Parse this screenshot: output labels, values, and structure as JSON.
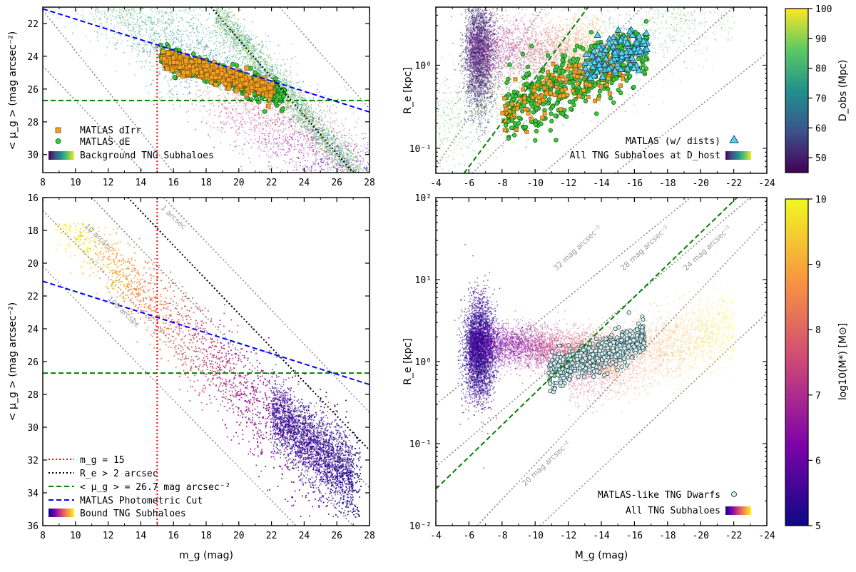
{
  "chart_data": [
    {
      "id": "top_left",
      "type": "scatter",
      "xlim": [
        8,
        28
      ],
      "ylim": [
        31.1,
        21.0
      ],
      "xticks": [
        "8",
        "10",
        "12",
        "14",
        "16",
        "18",
        "20",
        "22",
        "24",
        "26",
        "28"
      ],
      "yticks": [
        "22",
        "24",
        "26",
        "28",
        "30"
      ],
      "xlabel": "",
      "ylabel": "< μ_g > (mag arcsec⁻²)",
      "legend": [
        "MATLAS dIrr",
        "MATLAS dE",
        "Background TNG Subhaloes"
      ],
      "series": [
        {
          "name": "MATLAS dIrr",
          "marker": "square",
          "color": "#f2a127",
          "x_range": [
            15.3,
            22.5
          ],
          "y_center": "24.1 + 0.3·(x-15.3)"
        },
        {
          "name": "MATLAS dE",
          "marker": "circle",
          "color": "#3cc93c",
          "x_range": [
            15.2,
            22.8
          ],
          "y_center": "24.0 + 0.32·(x-15.2)"
        },
        {
          "name": "Background TNG Subhaloes",
          "marker": "dot",
          "colormap": "viridis"
        }
      ],
      "lines": [
        {
          "name": "m_g = 15",
          "style": "dotted",
          "color": "#ff0000",
          "x": 15,
          "y_from": 23.4
        },
        {
          "name": "R_e > 2 arcsec",
          "style": "dotted",
          "color": "#000000",
          "x0": 18.3,
          "y0": 21.0,
          "x1": 27.0,
          "y1": 31.1
        },
        {
          "name": "<μ_g> = 26.7",
          "style": "dashed",
          "color": "#008000",
          "y": 26.7
        },
        {
          "name": "MATLAS Photometric Cut",
          "style": "dashed",
          "color": "#0000ff",
          "x0": 8,
          "y0": 21.1,
          "x1": 28,
          "y1": 27.4
        }
      ],
      "diag_lines": [
        [
          8,
          24.6,
          14.2,
          31.1
        ],
        [
          8,
          21.2,
          16.0,
          31.1
        ],
        [
          22.5,
          21.0,
          28,
          27.2
        ]
      ]
    },
    {
      "id": "top_right",
      "type": "scatter",
      "xlim": [
        -4,
        -24
      ],
      "ylim": [
        0.05,
        5
      ],
      "yscale": "log",
      "xticks": [
        "-4",
        "-6",
        "-8",
        "-10",
        "-12",
        "-14",
        "-16",
        "-18",
        "-20",
        "-22",
        "-24"
      ],
      "yticks": [
        "10⁻¹",
        "10⁰"
      ],
      "xlabel": "",
      "ylabel": "R_e [kpc]",
      "legend": [
        "MATLAS (w/ dists)",
        "All TNG Subhaloes at D_host"
      ],
      "series": [
        {
          "name": "MATLAS dE",
          "marker": "circle",
          "color": "#3cc93c",
          "x_range": [
            -8.2,
            -16.8
          ]
        },
        {
          "name": "MATLAS dIrr",
          "marker": "square",
          "color": "#f2a127",
          "x_range": [
            -8.0,
            -15.8
          ]
        },
        {
          "name": "MATLAS (w/ dists)",
          "marker": "triangle",
          "color": "#4fd7f0",
          "x_range": [
            -13.0,
            -16.8
          ]
        },
        {
          "name": "All TNG Subhaloes at D_host",
          "marker": "dot",
          "colormap": "viridis"
        }
      ],
      "lines": [
        {
          "name": "green dashed",
          "style": "dashed",
          "color": "#008000",
          "x0": -5.7,
          "y0": 0.05,
          "x1": -13.2,
          "y1": 5
        }
      ],
      "colorbar": {
        "label": "D_obs (Mpc)",
        "range": [
          45,
          100
        ],
        "ticks": [
          "50",
          "60",
          "70",
          "80",
          "90",
          "100"
        ]
      }
    },
    {
      "id": "bottom_left",
      "type": "scatter",
      "xlim": [
        8,
        28
      ],
      "ylim": [
        36,
        16
      ],
      "xticks": [
        "8",
        "10",
        "12",
        "14",
        "16",
        "18",
        "20",
        "22",
        "24",
        "26",
        "28"
      ],
      "yticks": [
        "16",
        "18",
        "20",
        "22",
        "24",
        "26",
        "28",
        "30",
        "32",
        "34",
        "36"
      ],
      "xlabel": "m_g (mag)",
      "ylabel": "< μ_g > (mag arcsec⁻²)",
      "legend": [
        "m_g = 15",
        "R_e > 2 arcsec",
        "< μ_g > = 26.7 mag arcsec⁻²",
        "MATLAS Photometric Cut",
        "Bound TNG Subhaloes"
      ],
      "series": [
        {
          "name": "Bound TNG Subhaloes",
          "marker": "dot",
          "colormap": "plasma"
        }
      ],
      "lines": [
        {
          "name": "m_g = 15",
          "style": "dotted",
          "color": "#ff0000",
          "x": 15
        },
        {
          "name": "R_e > 2 arcsec",
          "style": "dotted",
          "color": "#000000",
          "x0": 13.2,
          "y0": 16,
          "x1": 28,
          "y1": 31.4
        },
        {
          "name": "< μ_g > = 26.7 mag arcsec⁻²",
          "style": "dashed",
          "color": "#008000",
          "y": 26.7
        },
        {
          "name": "MATLAS Photometric Cut",
          "style": "dashed",
          "color": "#0000ff",
          "x0": 8,
          "y0": 21.1,
          "x1": 28,
          "y1": 27.4
        }
      ],
      "diag_lines": [
        [
          15.4,
          16,
          28,
          29.1
        ],
        [
          11.0,
          16,
          28,
          33.7
        ],
        [
          8,
          20.2,
          23.5,
          36
        ],
        [
          8,
          16.8,
          27.0,
          36
        ]
      ],
      "annotations": [
        "10 arcsec",
        "1 arcsec",
        "100 arcsec"
      ]
    },
    {
      "id": "bottom_right",
      "type": "scatter",
      "xlim": [
        -4,
        -24
      ],
      "ylim": [
        0.01,
        100
      ],
      "yscale": "log",
      "xticks": [
        "-4",
        "-6",
        "-8",
        "-10",
        "-12",
        "-14",
        "-16",
        "-18",
        "-20",
        "-22",
        "-24"
      ],
      "yticks": [
        "10⁻²",
        "10⁻¹",
        "10⁰",
        "10¹",
        "10²"
      ],
      "xlabel": "M_g (mag)",
      "ylabel": "R_e [kpc]",
      "legend": [
        "MATLAS-like TNG Dwarfs",
        "All TNG Subhaloes"
      ],
      "series": [
        {
          "name": "MATLAS-like TNG Dwarfs",
          "marker": "open-circle",
          "color": "#d8f0f0",
          "x_range": [
            -10.5,
            -16.5
          ]
        },
        {
          "name": "All TNG Subhaloes",
          "marker": "dot",
          "colormap": "plasma"
        }
      ],
      "lines": [
        {
          "name": "green dashed",
          "style": "dashed",
          "color": "#008000",
          "x0": -4,
          "y0": 0.028,
          "x1": -22.2,
          "y1": 100
        }
      ],
      "diag_lines": [
        [
          -4,
          0.3,
          -19.4,
          100
        ],
        [
          -4,
          0.052,
          -23.0,
          100
        ],
        [
          -6.5,
          0.01,
          -24,
          54
        ],
        [
          -10.3,
          0.01,
          -24,
          3.9
        ]
      ],
      "annotations": [
        "32 mag arcsec⁻²",
        "28 mag arcsec⁻²",
        "24 mag arcsec⁻²",
        "20 mag arcsec⁻²"
      ],
      "colorbar": {
        "label": "log10(M*) [M⊙]",
        "range": [
          5,
          10
        ],
        "ticks": [
          "5",
          "6",
          "7",
          "8",
          "9",
          "10"
        ]
      }
    }
  ]
}
